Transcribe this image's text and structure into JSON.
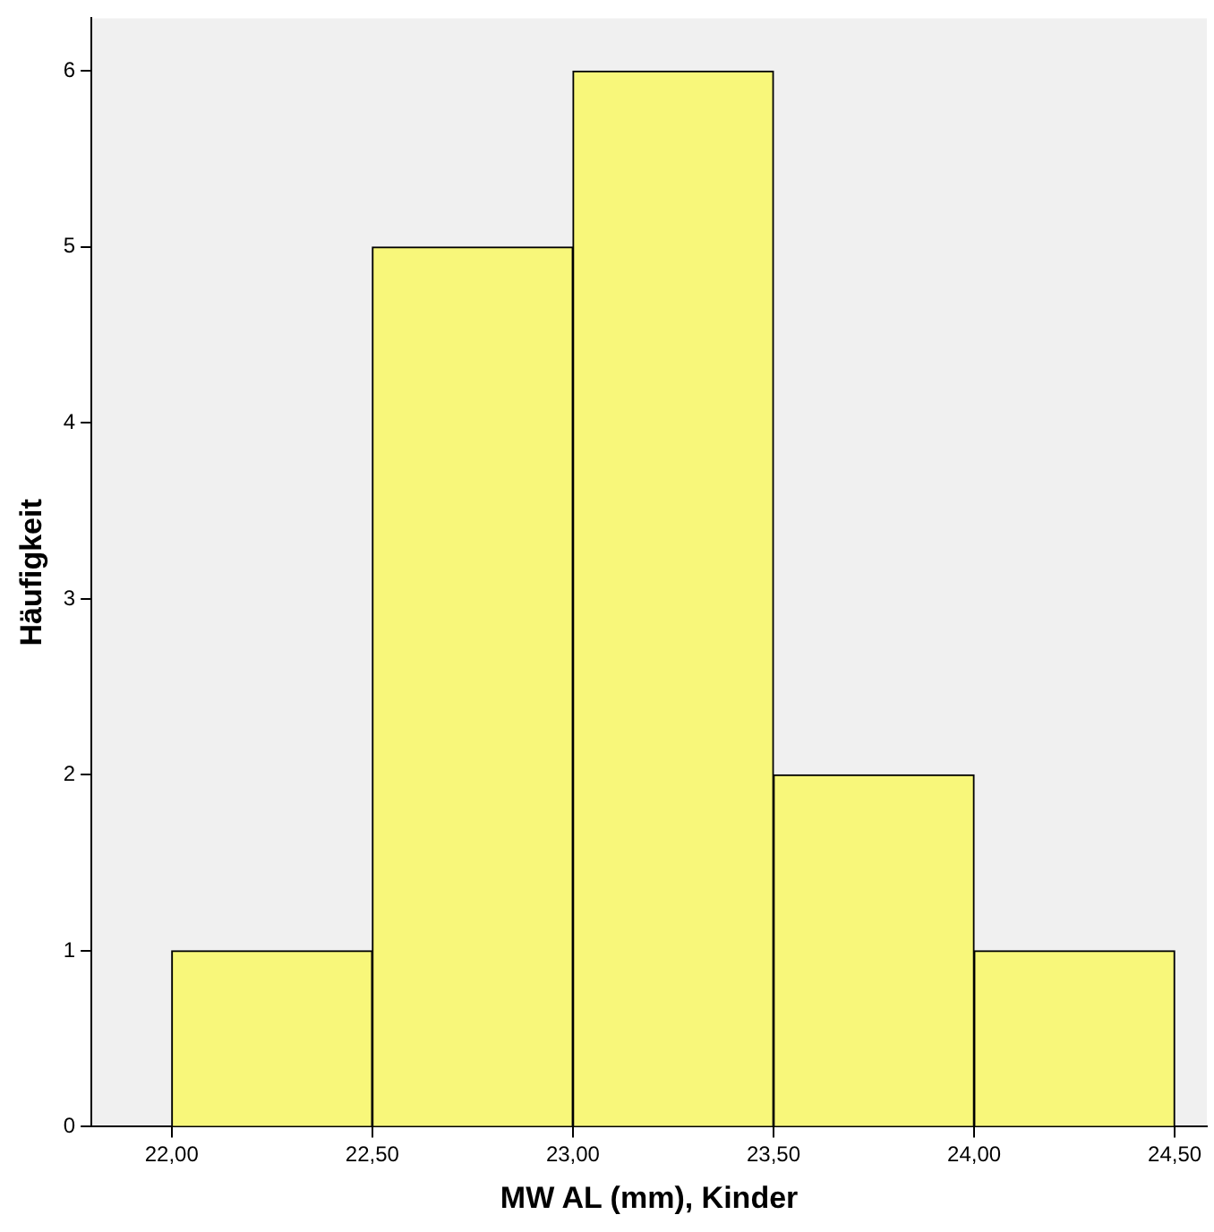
{
  "chart_data": {
    "type": "histogram",
    "xlabel": "MW AL (mm), Kinder",
    "ylabel": "Häufigkeit",
    "bins": [
      22,
      22.5,
      23,
      23.5,
      24,
      24.5
    ],
    "values": [
      1,
      5,
      6,
      2,
      1
    ],
    "color": "#f8f77a",
    "xlim": [
      21.8,
      24.58
    ],
    "xticks": [
      {
        "value": 22,
        "label": "22,00"
      },
      {
        "value": 22.5,
        "label": "22,50"
      },
      {
        "value": 23,
        "label": "23,00"
      },
      {
        "value": 23.5,
        "label": "23,50"
      },
      {
        "value": 24,
        "label": "24,00"
      },
      {
        "value": 24.5,
        "label": "24,50"
      }
    ],
    "ylim": [
      0,
      6.3
    ],
    "yticks": [
      0,
      1,
      2,
      3,
      4,
      5,
      6
    ],
    "grid": false,
    "legend": false
  }
}
